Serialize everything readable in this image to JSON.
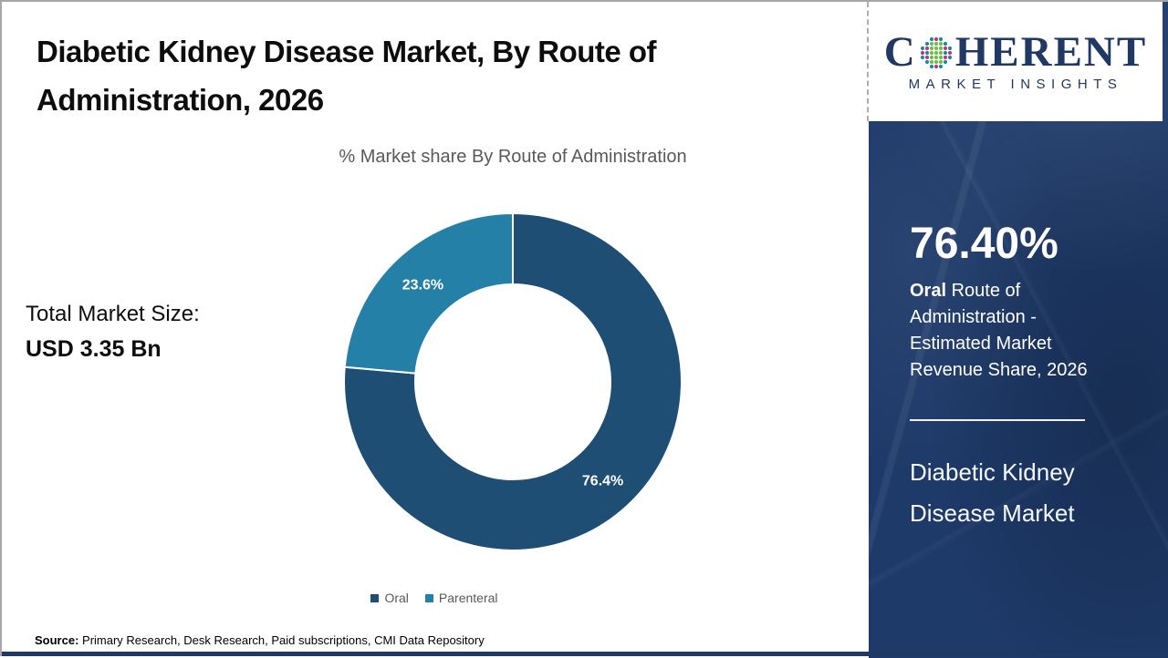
{
  "header": {
    "title": "Diabetic Kidney Disease Market, By Route of Administration, 2026"
  },
  "logo": {
    "brand_first_letter": "C",
    "brand_rest": "HERENT",
    "tagline": "MARKET INSIGHTS",
    "brand_color": "#1f3864",
    "globe_colors": {
      "green": "#6cbf4b",
      "teal": "#1a8a9d",
      "magenta": "#c2367e"
    }
  },
  "chart_data": {
    "type": "pie",
    "donut": true,
    "donut_hole_ratio": 0.58,
    "start_angle": "top",
    "direction": "clockwise",
    "title": "% Market share By Route of Administration",
    "categories": [
      "Oral",
      "Parenteral"
    ],
    "values": [
      76.4,
      23.6
    ],
    "labels": [
      "76.4%",
      "23.6%"
    ],
    "colors": [
      "#1f4e74",
      "#2580a8"
    ],
    "legend_position": "bottom"
  },
  "left_panel": {
    "total_label": "Total Market Size:",
    "total_value": "USD 3.35 Bn"
  },
  "source": {
    "label": "Source:",
    "text": " Primary Research, Desk Research, Paid subscriptions, CMI Data Repository"
  },
  "side_panel": {
    "bg_color": "#1e3a69",
    "stat_value": "76.40%",
    "stat_desc_bold": "Oral",
    "stat_desc_rest": " Route of Administration - Estimated Market Revenue Share, 2026",
    "market_name_line1": "Diabetic Kidney",
    "market_name_line2": "Disease Market"
  }
}
